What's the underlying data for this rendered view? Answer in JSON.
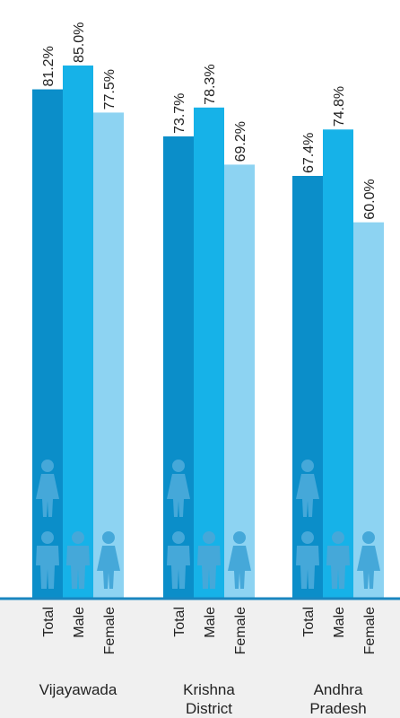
{
  "chart_data": {
    "type": "bar",
    "categories": [
      "Vijayawada",
      "Krishna District",
      "Andhra Pradesh"
    ],
    "category_lines": [
      [
        "Vijayawada"
      ],
      [
        "Krishna",
        "District"
      ],
      [
        "Andhra",
        "Pradesh"
      ]
    ],
    "series": [
      {
        "name": "Total",
        "values": [
          81.2,
          73.7,
          67.4
        ],
        "labels": [
          "81.2%",
          "73.7%",
          "67.4%"
        ],
        "color": "#0b8ec9"
      },
      {
        "name": "Male",
        "values": [
          85.0,
          78.3,
          74.8
        ],
        "labels": [
          "85.0%",
          "78.3%",
          "74.8%"
        ],
        "color": "#16b2e8"
      },
      {
        "name": "Female",
        "values": [
          77.5,
          69.2,
          60.0
        ],
        "labels": [
          "77.5%",
          "69.2%",
          "60.0%"
        ],
        "color": "#8dd3f2"
      }
    ],
    "icons": {
      "Total": [
        "female-person-icon",
        "male-person-icon"
      ],
      "Male": [
        "male-person-icon"
      ],
      "Female": [
        "female-person-icon"
      ]
    },
    "colors": {
      "baseline": "#1a86bf",
      "footer_bg": "#f0f0f0",
      "text": "#222222",
      "icon": "#45a8d9"
    },
    "grid": false,
    "legend": "none"
  }
}
